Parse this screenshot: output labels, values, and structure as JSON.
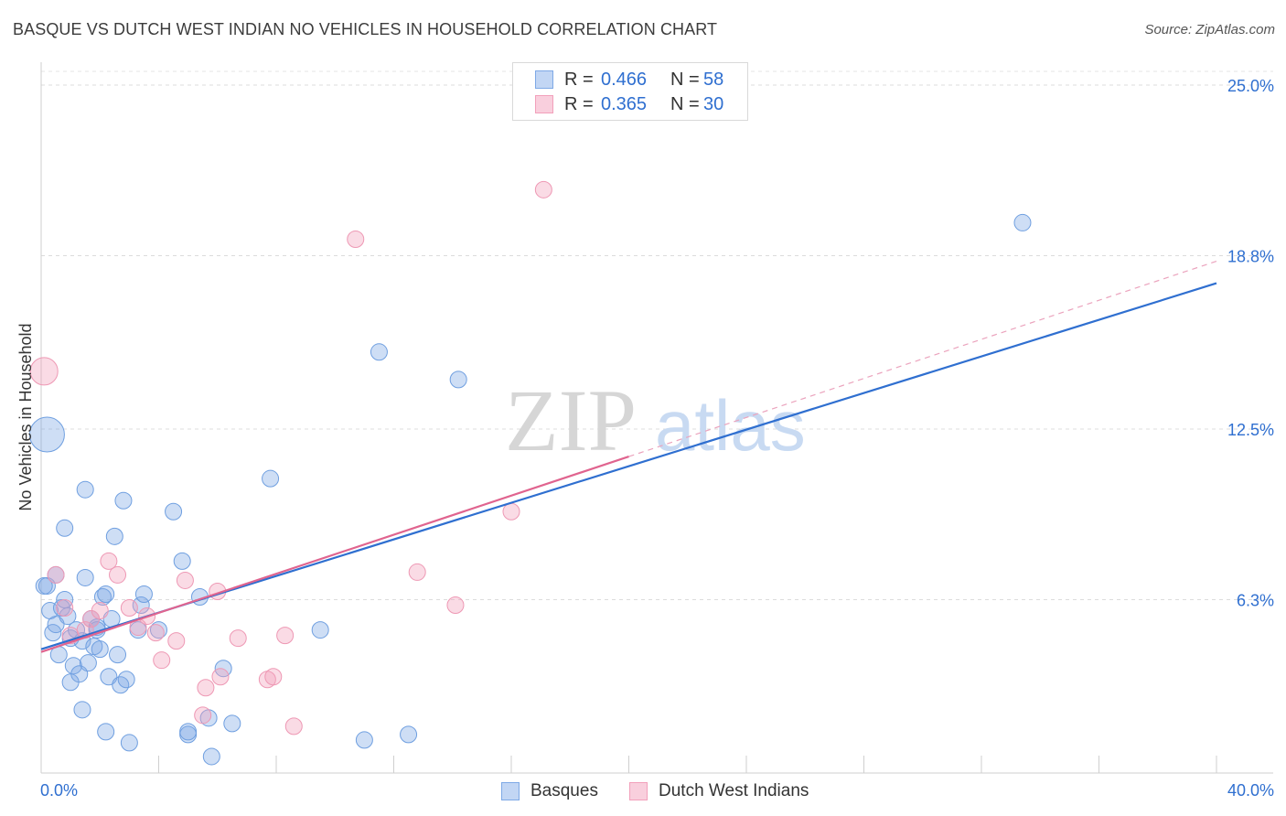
{
  "title": "BASQUE VS DUTCH WEST INDIAN NO VEHICLES IN HOUSEHOLD CORRELATION CHART",
  "source": "Source: ZipAtlas.com",
  "legend": {
    "series1": {
      "r_key": "R =",
      "r_val": "0.466",
      "n_key": "N =",
      "n_val": "58",
      "color": "#7ea9e6"
    },
    "series2": {
      "r_key": "R =",
      "r_val": "0.365",
      "n_key": "N =",
      "n_val": "30",
      "color": "#f2a0bb"
    }
  },
  "bottom_legend": {
    "basques": "Basques",
    "dutch": "Dutch West Indians"
  },
  "watermark": {
    "zip": "ZIP",
    "atlas": "atlas"
  },
  "colors": {
    "blue": "#7ea9e6",
    "blue_line": "#2f6fd0",
    "pink": "#f2a0bb",
    "pink_line": "#e0648f",
    "axis_label": "#2f6fd0"
  },
  "chart_data": {
    "type": "scatter",
    "ylabel": "No Vehicles in Household",
    "xlabel": "",
    "xlim": [
      0,
      40
    ],
    "ylim": [
      0,
      25.5
    ],
    "x_tick_labels": [
      "0.0%",
      "40.0%"
    ],
    "y_ticks": [
      6.3,
      12.5,
      18.8,
      25.0
    ],
    "y_tick_labels": [
      "6.3%",
      "12.5%",
      "18.8%",
      "25.0%"
    ],
    "series": [
      {
        "name": "Basques",
        "r": 0.466,
        "n": 58,
        "trend": {
          "x0": 0,
          "y0": 4.5,
          "x1": 40,
          "y1": 17.8,
          "dashed": false
        },
        "points": [
          [
            0.2,
            6.8
          ],
          [
            0.3,
            5.9
          ],
          [
            0.4,
            5.1
          ],
          [
            0.5,
            7.2
          ],
          [
            0.5,
            5.4
          ],
          [
            0.6,
            4.3
          ],
          [
            0.7,
            6.0
          ],
          [
            0.8,
            8.9
          ],
          [
            0.8,
            6.3
          ],
          [
            0.9,
            5.7
          ],
          [
            1.0,
            4.9
          ],
          [
            1.0,
            3.3
          ],
          [
            1.1,
            3.9
          ],
          [
            1.2,
            5.2
          ],
          [
            1.3,
            3.6
          ],
          [
            1.4,
            2.3
          ],
          [
            1.4,
            4.8
          ],
          [
            1.5,
            7.1
          ],
          [
            1.5,
            10.3
          ],
          [
            1.6,
            4.0
          ],
          [
            1.7,
            5.6
          ],
          [
            1.8,
            4.6
          ],
          [
            1.9,
            5.3
          ],
          [
            1.9,
            5.2
          ],
          [
            2.0,
            4.5
          ],
          [
            2.1,
            6.4
          ],
          [
            2.2,
            1.5
          ],
          [
            2.2,
            6.5
          ],
          [
            2.3,
            3.5
          ],
          [
            2.4,
            5.6
          ],
          [
            2.5,
            8.6
          ],
          [
            2.6,
            4.3
          ],
          [
            2.7,
            3.2
          ],
          [
            2.8,
            9.9
          ],
          [
            2.9,
            3.4
          ],
          [
            3.0,
            1.1
          ],
          [
            3.3,
            5.2
          ],
          [
            3.4,
            6.1
          ],
          [
            3.5,
            6.5
          ],
          [
            4.0,
            5.2
          ],
          [
            4.5,
            9.5
          ],
          [
            4.8,
            7.7
          ],
          [
            5.0,
            1.4
          ],
          [
            5.0,
            1.5
          ],
          [
            5.4,
            6.4
          ],
          [
            5.7,
            2.0
          ],
          [
            5.8,
            0.6
          ],
          [
            6.2,
            3.8
          ],
          [
            6.5,
            1.8
          ],
          [
            7.8,
            10.7
          ],
          [
            9.5,
            5.2
          ],
          [
            11.0,
            1.2
          ],
          [
            11.5,
            15.3
          ],
          [
            12.5,
            1.4
          ],
          [
            14.2,
            14.3
          ],
          [
            33.4,
            20.0
          ],
          [
            0.2,
            12.3
          ],
          [
            0.1,
            6.8
          ]
        ]
      },
      {
        "name": "Dutch West Indians",
        "r": 0.365,
        "n": 30,
        "trend": {
          "x0": 0,
          "y0": 4.4,
          "x1": 20,
          "y1": 11.5,
          "dashed": false,
          "ext_x1": 40,
          "ext_y1": 18.6
        },
        "points": [
          [
            0.1,
            14.6
          ],
          [
            0.5,
            7.2
          ],
          [
            0.8,
            6.0
          ],
          [
            1.0,
            5.0
          ],
          [
            1.5,
            5.2
          ],
          [
            1.7,
            5.6
          ],
          [
            2.0,
            5.9
          ],
          [
            2.3,
            7.7
          ],
          [
            2.6,
            7.2
          ],
          [
            3.0,
            6.0
          ],
          [
            3.3,
            5.3
          ],
          [
            3.6,
            5.7
          ],
          [
            3.9,
            5.1
          ],
          [
            4.1,
            4.1
          ],
          [
            4.6,
            4.8
          ],
          [
            4.9,
            7.0
          ],
          [
            5.5,
            2.1
          ],
          [
            5.6,
            3.1
          ],
          [
            6.0,
            6.6
          ],
          [
            6.1,
            3.5
          ],
          [
            6.7,
            4.9
          ],
          [
            7.7,
            3.4
          ],
          [
            7.9,
            3.5
          ],
          [
            8.3,
            5.0
          ],
          [
            8.6,
            1.7
          ],
          [
            10.7,
            19.4
          ],
          [
            12.8,
            7.3
          ],
          [
            14.1,
            6.1
          ],
          [
            16.0,
            9.5
          ],
          [
            17.1,
            21.2
          ]
        ]
      }
    ]
  }
}
